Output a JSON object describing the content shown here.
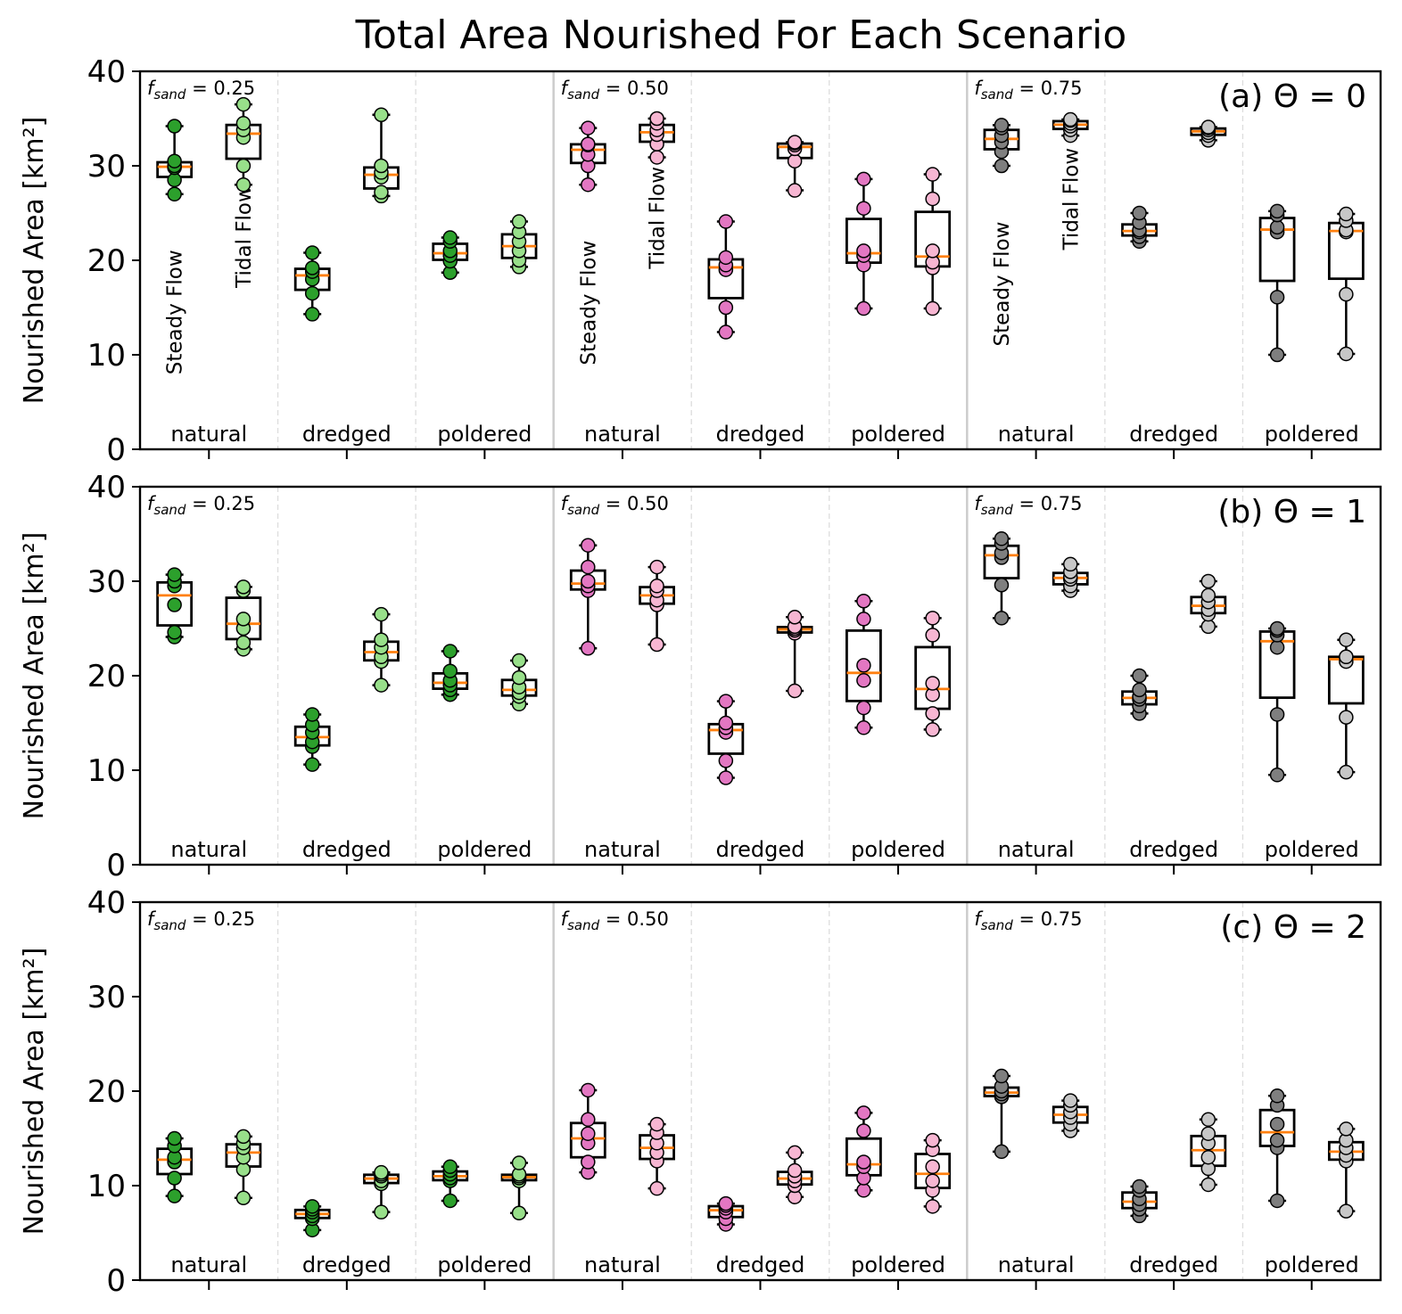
{
  "chart_data": {
    "type": "box",
    "title": "Total Area Nourished For Each Scenario",
    "ylabel": "Nourished Area [km²]",
    "ylim": [
      0,
      40
    ],
    "yticks": [
      0,
      10,
      20,
      30,
      40
    ],
    "categories": [
      "natural",
      "dredged",
      "poldered",
      "natural",
      "dredged",
      "poldered",
      "natural",
      "dredged",
      "poldered"
    ],
    "sand_groups": [
      {
        "label": "0.25",
        "categories": [
          0,
          1,
          2
        ]
      },
      {
        "label": "0.50",
        "categories": [
          3,
          4,
          5
        ]
      },
      {
        "label": "0.75",
        "categories": [
          6,
          7,
          8
        ]
      }
    ],
    "flow_types": [
      "Steady Flow",
      "Tidal Flow"
    ],
    "colors": {
      "steady": [
        "#2ca02c",
        "#e377c2",
        "#7f7f7f"
      ],
      "tidal": [
        "#98df8a",
        "#f7b6d2",
        "#c7c7c7"
      ],
      "median": "#ff7f0e",
      "box": "#000000",
      "vline": "#cccccc"
    },
    "panels": [
      {
        "label": "(a) Θ = 0",
        "flow_labels": [
          {
            "category": 0,
            "flow": 0,
            "y": 14.5
          },
          {
            "category": 0,
            "flow": 1,
            "y": 22.5
          },
          {
            "category": 3,
            "flow": 0,
            "y": 15.5
          },
          {
            "category": 3,
            "flow": 1,
            "y": 24.5
          },
          {
            "category": 6,
            "flow": 0,
            "y": 17.5
          },
          {
            "category": 6,
            "flow": 1,
            "y": 26.5
          }
        ],
        "groups": [
          [
            {
              "points": [
                27.0,
                28.5,
                29.8,
                30.0,
                30.5,
                34.2
              ]
            },
            {
              "points": [
                28.0,
                30.0,
                33.0,
                33.8,
                34.5,
                36.5
              ]
            }
          ],
          [
            {
              "points": [
                14.3,
                16.5,
                18.0,
                18.8,
                19.2,
                20.8
              ]
            },
            {
              "points": [
                26.8,
                27.2,
                28.8,
                29.3,
                30.0,
                35.4
              ]
            }
          ],
          [
            {
              "points": [
                18.7,
                19.9,
                20.5,
                21.0,
                22.0,
                22.4
              ]
            },
            {
              "points": [
                19.3,
                20.0,
                21.0,
                22.0,
                23.0,
                24.1
              ]
            }
          ],
          [
            {
              "points": [
                28.0,
                30.0,
                31.2,
                32.2,
                32.3,
                34.0
              ]
            },
            {
              "points": [
                30.9,
                32.3,
                33.3,
                33.8,
                34.5,
                35.0
              ]
            }
          ],
          [
            {
              "points": [
                12.4,
                15.0,
                19.0,
                19.5,
                20.3,
                24.1
              ]
            },
            {
              "points": [
                27.4,
                30.5,
                31.8,
                32.2,
                32.4,
                32.5
              ]
            }
          ],
          [
            {
              "points": [
                14.9,
                19.5,
                20.5,
                21.0,
                25.5,
                28.6
              ]
            },
            {
              "points": [
                14.9,
                19.2,
                19.8,
                21.0,
                26.5,
                29.1
              ]
            }
          ],
          [
            {
              "points": [
                30.0,
                31.5,
                32.5,
                33.2,
                34.0,
                34.3
              ]
            },
            {
              "points": [
                33.2,
                33.8,
                34.2,
                34.5,
                34.8,
                34.9
              ]
            }
          ],
          [
            {
              "points": [
                22.0,
                22.5,
                23.0,
                23.2,
                24.0,
                25.0
              ]
            },
            {
              "points": [
                32.7,
                33.2,
                33.5,
                33.8,
                34.0,
                34.1
              ]
            }
          ],
          [
            {
              "points": [
                10.0,
                16.1,
                23.0,
                23.5,
                24.8,
                25.2
              ]
            },
            {
              "points": [
                10.1,
                16.4,
                23.0,
                23.2,
                24.2,
                24.9
              ]
            }
          ]
        ]
      },
      {
        "label": "(b) Θ = 1",
        "groups": [
          [
            {
              "points": [
                24.1,
                24.6,
                27.5,
                29.5,
                30.0,
                30.7
              ]
            },
            {
              "points": [
                22.8,
                23.5,
                25.0,
                26.0,
                29.0,
                29.4
              ]
            }
          ],
          [
            {
              "points": [
                10.6,
                12.5,
                13.0,
                14.0,
                14.8,
                15.9
              ]
            },
            {
              "points": [
                19.0,
                21.5,
                22.0,
                23.0,
                23.8,
                26.5
              ]
            }
          ],
          [
            {
              "points": [
                18.0,
                18.5,
                19.0,
                19.5,
                20.5,
                22.6
              ]
            },
            {
              "points": [
                17.0,
                17.8,
                18.2,
                18.8,
                19.8,
                21.6
              ]
            }
          ],
          [
            {
              "points": [
                22.9,
                29.0,
                29.5,
                30.0,
                31.5,
                33.8
              ]
            },
            {
              "points": [
                23.3,
                27.5,
                28.0,
                29.0,
                29.5,
                31.5
              ]
            }
          ],
          [
            {
              "points": [
                9.2,
                11.0,
                14.0,
                14.5,
                15.0,
                17.3
              ]
            },
            {
              "points": [
                18.4,
                24.5,
                24.8,
                25.0,
                25.2,
                26.2
              ]
            }
          ],
          [
            {
              "points": [
                14.5,
                16.6,
                19.5,
                21.1,
                26.0,
                27.9
              ]
            },
            {
              "points": [
                14.3,
                16.0,
                18.0,
                19.2,
                24.3,
                26.1
              ]
            }
          ],
          [
            {
              "points": [
                26.1,
                29.6,
                32.5,
                33.0,
                34.0,
                34.5
              ]
            },
            {
              "points": [
                29.0,
                29.5,
                30.2,
                30.5,
                31.0,
                31.8
              ]
            }
          ],
          [
            {
              "points": [
                16.0,
                16.8,
                17.5,
                17.8,
                18.5,
                20.0
              ]
            },
            {
              "points": [
                25.2,
                26.5,
                27.0,
                27.8,
                28.5,
                30.0
              ]
            }
          ],
          [
            {
              "points": [
                9.5,
                15.9,
                23.0,
                24.3,
                24.8,
                25.0
              ]
            },
            {
              "points": [
                9.8,
                15.6,
                21.5,
                22.0,
                22.0,
                23.8
              ]
            }
          ]
        ]
      },
      {
        "label": "(c) Θ = 2",
        "groups": [
          [
            {
              "points": [
                8.9,
                10.8,
                12.5,
                13.0,
                14.2,
                15.0
              ]
            },
            {
              "points": [
                8.7,
                11.7,
                13.0,
                14.0,
                14.5,
                15.2
              ]
            }
          ],
          [
            {
              "points": [
                5.3,
                6.5,
                6.8,
                7.2,
                7.5,
                7.8
              ]
            },
            {
              "points": [
                7.2,
                10.2,
                10.5,
                11.0,
                11.2,
                11.4
              ]
            }
          ],
          [
            {
              "points": [
                8.4,
                10.5,
                10.8,
                11.2,
                11.6,
                12.0
              ]
            },
            {
              "points": [
                7.1,
                10.5,
                10.8,
                11.0,
                11.2,
                12.4
              ]
            }
          ],
          [
            {
              "points": [
                11.4,
                12.5,
                14.5,
                15.5,
                17.0,
                20.1
              ]
            },
            {
              "points": [
                9.7,
                12.6,
                13.5,
                14.5,
                15.6,
                16.5
              ]
            }
          ],
          [
            {
              "points": [
                5.9,
                6.5,
                7.2,
                7.6,
                7.9,
                8.1
              ]
            },
            {
              "points": [
                8.8,
                10.0,
                10.5,
                11.0,
                11.6,
                13.5
              ]
            }
          ],
          [
            {
              "points": [
                9.5,
                10.8,
                12.0,
                12.5,
                15.8,
                17.7
              ]
            },
            {
              "points": [
                7.8,
                9.5,
                10.5,
                12.0,
                13.8,
                14.8
              ]
            }
          ],
          [
            {
              "points": [
                13.6,
                19.4,
                19.7,
                20.0,
                20.5,
                21.6
              ]
            },
            {
              "points": [
                15.8,
                16.5,
                17.2,
                17.8,
                18.5,
                19.0
              ]
            }
          ],
          [
            {
              "points": [
                6.8,
                7.5,
                8.0,
                8.6,
                9.5,
                9.9
              ]
            },
            {
              "points": [
                10.1,
                11.8,
                13.0,
                14.5,
                15.5,
                17.0
              ]
            }
          ],
          [
            {
              "points": [
                8.4,
                14.0,
                14.8,
                16.5,
                18.5,
                19.5
              ]
            },
            {
              "points": [
                7.3,
                12.6,
                13.2,
                14.0,
                14.8,
                16.0
              ]
            }
          ]
        ]
      }
    ]
  }
}
